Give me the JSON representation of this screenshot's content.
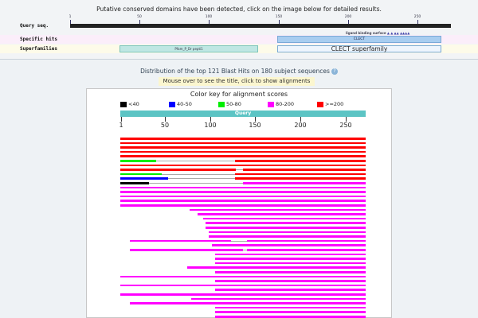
{
  "cdd": {
    "title": "Putative conserved domains have been detected, click on the image below for detailed results.",
    "query_label": "Query seq.",
    "specific_label": "Specific hits",
    "super_label": "Superfamilies",
    "ticks": [
      1,
      50,
      100,
      150,
      200,
      250
    ],
    "ligand_text": "ligand binding surface",
    "ligand_link": "▲ ▲ ▲▲ ▲▲▲▲",
    "specific_hit": "CLECT",
    "super_hit_small": "Pfam_P_Dr pepti1",
    "super_hit_big": "CLECT superfamily"
  },
  "distribution": {
    "title": "Distribution of the top 121 Blast Hits on 180 subject sequences",
    "hint": "Mouse over to see the title, click to show alignments"
  },
  "key": {
    "title": "Color key for alignment scores",
    "items": [
      {
        "label": "<40",
        "color": "#000000"
      },
      {
        "label": "40-50",
        "color": "#0000ff"
      },
      {
        "label": "50-80",
        "color": "#00ee00"
      },
      {
        "label": "80-200",
        "color": "#ff00ff"
      },
      {
        "label": ">=200",
        "color": "#ff0000"
      }
    ]
  },
  "query": {
    "label": "Query",
    "ticks": [
      1,
      50,
      100,
      150,
      200,
      250
    ]
  }
}
